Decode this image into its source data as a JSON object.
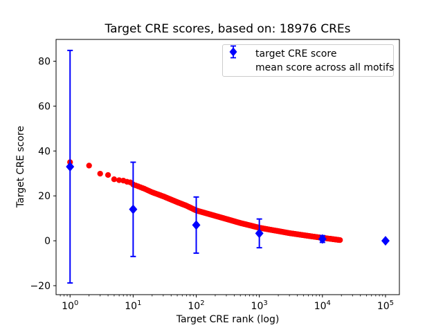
{
  "figure": {
    "title": "Target CRE scores, based on: 18976 CREs",
    "xlabel": "Target CRE rank (log)",
    "ylabel": "Target CRE score"
  },
  "colors": {
    "target_series": "#ff0000",
    "mean_series": "#0000ff",
    "axes": "#000000",
    "legend_border": "#cccccc"
  },
  "legend": {
    "position": "upper right",
    "entries": [
      {
        "label": "target CRE score",
        "marker": "red-circle",
        "color": "#ff0000"
      },
      {
        "label": "mean score across all motifs",
        "marker": "blue-diamond-errorbar",
        "color": "#0000ff"
      }
    ]
  },
  "chart_data": {
    "type": "scatter",
    "title": "Target CRE scores, based on: 18976 CREs",
    "xlabel": "Target CRE rank (log)",
    "ylabel": "Target CRE score",
    "x_scale": "log",
    "xlim": [
      0.6,
      166000
    ],
    "ylim": [
      -24,
      89.7
    ],
    "x_ticks": [
      1,
      10,
      100,
      1000,
      10000,
      100000
    ],
    "x_tick_labels": [
      "10^0",
      "10^1",
      "10^2",
      "10^3",
      "10^4",
      "10^5"
    ],
    "y_ticks": [
      -20,
      0,
      20,
      40,
      60,
      80
    ],
    "grid": false,
    "legend_position": "upper right",
    "series": [
      {
        "name": "target CRE score",
        "type": "scatter",
        "marker": "circle",
        "color": "#ff0000",
        "n_points_total": 18976,
        "curve_anchors_rank_score": [
          [
            1,
            35.0
          ],
          [
            2,
            33.5
          ],
          [
            3,
            29.9
          ],
          [
            4,
            29.3
          ],
          [
            5,
            27.4
          ],
          [
            6,
            27.0
          ],
          [
            7,
            26.8
          ],
          [
            8,
            26.3
          ],
          [
            9,
            26.0
          ],
          [
            10,
            25.1
          ],
          [
            15,
            23.2
          ],
          [
            20,
            21.6
          ],
          [
            30,
            19.8
          ],
          [
            50,
            17.2
          ],
          [
            70,
            15.6
          ],
          [
            100,
            13.5
          ],
          [
            150,
            12.1
          ],
          [
            200,
            11.1
          ],
          [
            300,
            9.7
          ],
          [
            500,
            7.9
          ],
          [
            700,
            6.9
          ],
          [
            1000,
            5.8
          ],
          [
            1500,
            4.9
          ],
          [
            2000,
            4.3
          ],
          [
            3000,
            3.4
          ],
          [
            5000,
            2.5
          ],
          [
            7000,
            1.9
          ],
          [
            10000,
            1.3
          ],
          [
            14000,
            0.8
          ],
          [
            18976,
            0.3
          ]
        ]
      },
      {
        "name": "mean score across all motifs",
        "type": "errorbar",
        "marker": "diamond",
        "color": "#0000ff",
        "ranks": [
          1,
          10,
          100,
          1000,
          10000,
          100000
        ],
        "means": [
          33.0,
          14.0,
          7.0,
          3.3,
          0.8,
          0.0
        ],
        "errors": [
          51.8,
          21.0,
          12.5,
          6.4,
          1.5,
          0.3
        ]
      }
    ]
  }
}
